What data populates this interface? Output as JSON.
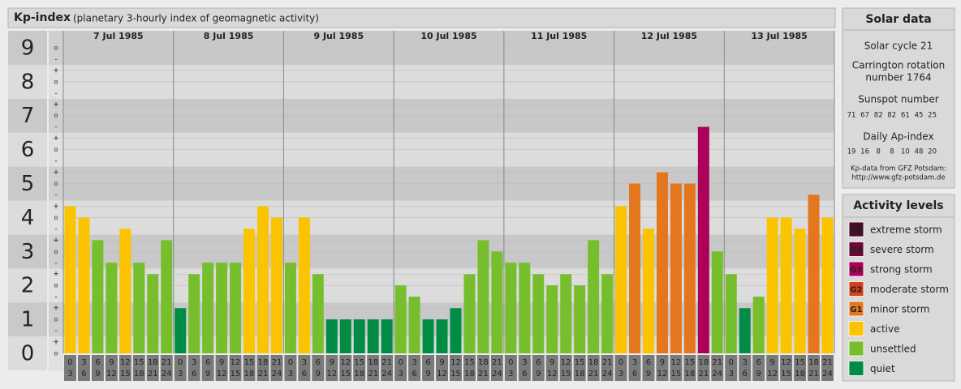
{
  "chart_data": {
    "type": "bar",
    "title": "Kp-index",
    "subtitle": "(planetary 3-hourly index of geomagnetic activity)",
    "days": [
      "7 Jul 1985",
      "8 Jul 1985",
      "9 Jul 1985",
      "10 Jul 1985",
      "11 Jul 1985",
      "12 Jul 1985",
      "13 Jul 1985"
    ],
    "intervals": [
      [
        "0",
        "3"
      ],
      [
        "3",
        "6"
      ],
      [
        "6",
        "9"
      ],
      [
        "9",
        "12"
      ],
      [
        "12",
        "15"
      ],
      [
        "15",
        "18"
      ],
      [
        "18",
        "21"
      ],
      [
        "21",
        "24"
      ]
    ],
    "values": [
      4.33,
      4,
      3.33,
      2.67,
      3.67,
      2.67,
      2.33,
      3.33,
      1.33,
      2.33,
      2.67,
      2.67,
      2.67,
      3.67,
      4.33,
      4,
      2.67,
      4,
      2.33,
      1,
      1,
      1,
      1,
      1,
      2,
      1.67,
      1,
      1,
      1.33,
      2.33,
      3.33,
      3,
      2.67,
      2.67,
      2.33,
      2,
      2.33,
      2,
      3.33,
      2.33,
      4.33,
      5,
      3.67,
      5.33,
      5,
      5,
      6.67,
      3,
      2.33,
      1.33,
      1.67,
      4,
      4,
      3.67,
      4.67,
      4
    ],
    "colors": [
      "#fbc300",
      "#fbc300",
      "#77be2c",
      "#77be2c",
      "#fbc300",
      "#77be2c",
      "#77be2c",
      "#77be2c",
      "#008c45",
      "#77be2c",
      "#77be2c",
      "#77be2c",
      "#77be2c",
      "#fbc300",
      "#fbc300",
      "#fbc300",
      "#77be2c",
      "#fbc300",
      "#77be2c",
      "#008c45",
      "#008c45",
      "#008c45",
      "#008c45",
      "#008c45",
      "#77be2c",
      "#77be2c",
      "#008c45",
      "#008c45",
      "#008c45",
      "#77be2c",
      "#77be2c",
      "#77be2c",
      "#77be2c",
      "#77be2c",
      "#77be2c",
      "#77be2c",
      "#77be2c",
      "#77be2c",
      "#77be2c",
      "#77be2c",
      "#fbc300",
      "#e4761e",
      "#fbc300",
      "#e4761e",
      "#e4761e",
      "#e4761e",
      "#ad0059",
      "#77be2c",
      "#77be2c",
      "#008c45",
      "#77be2c",
      "#fbc300",
      "#fbc300",
      "#fbc300",
      "#e4761e",
      "#fbc300"
    ],
    "ylim": [
      0,
      9.5
    ],
    "yticks": [
      0,
      1,
      2,
      3,
      4,
      5,
      6,
      7,
      8,
      9
    ],
    "yminor_labels": {
      "minus": "-",
      "zero": "o",
      "plus": "+"
    }
  },
  "solar_data": {
    "title": "Solar data",
    "cycle": "Solar cycle 21",
    "carrington": [
      "Carrington rotation",
      "number 1764"
    ],
    "sunspot_title": "Sunspot number",
    "sunspot": [
      71,
      67,
      82,
      82,
      61,
      45,
      25
    ],
    "ap_title": "Daily Ap-index",
    "ap": [
      19,
      16,
      8,
      8,
      10,
      48,
      20
    ],
    "source": "Kp-data from GFZ Potsdam:",
    "url": "http://www.gfz-potsdam.de"
  },
  "activity_levels": {
    "title": "Activity levels",
    "items": [
      {
        "code": "G5",
        "name": "extreme storm",
        "color": "#4a0b28"
      },
      {
        "code": "G4",
        "name": "severe storm",
        "color": "#6e0735"
      },
      {
        "code": "G3",
        "name": "strong storm",
        "color": "#ad0059"
      },
      {
        "code": "G2",
        "name": "moderate storm",
        "color": "#d6401c"
      },
      {
        "code": "G1",
        "name": "minor storm",
        "color": "#e4761e"
      },
      {
        "name": "active",
        "color": "#fbc300"
      },
      {
        "name": "unsettled",
        "color": "#77be2c"
      },
      {
        "name": "quiet",
        "color": "#008c45"
      }
    ]
  }
}
